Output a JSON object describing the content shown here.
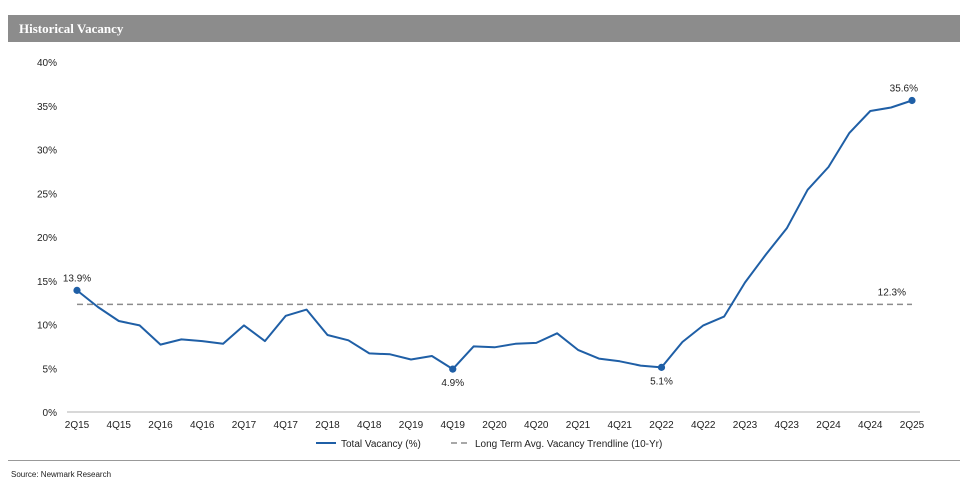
{
  "header": {
    "title": "Historical Vacancy"
  },
  "footer": {
    "source": "Source: Newmark Research"
  },
  "chart_data": {
    "type": "line",
    "title": "Historical Vacancy",
    "xlabel": "",
    "ylabel": "",
    "ylim": [
      0,
      40
    ],
    "yticks": [
      "0%",
      "5%",
      "10%",
      "15%",
      "20%",
      "25%",
      "30%",
      "35%",
      "40%"
    ],
    "grid": false,
    "legend_position": "bottom",
    "categories": [
      "2Q15",
      "3Q15",
      "4Q15",
      "1Q16",
      "2Q16",
      "3Q16",
      "4Q16",
      "1Q17",
      "2Q17",
      "3Q17",
      "4Q17",
      "1Q18",
      "2Q18",
      "3Q18",
      "4Q18",
      "1Q19",
      "2Q19",
      "3Q19",
      "4Q19",
      "1Q20",
      "2Q20",
      "3Q20",
      "4Q20",
      "1Q21",
      "2Q21",
      "3Q21",
      "4Q21",
      "1Q22",
      "2Q22",
      "3Q22",
      "4Q22",
      "1Q23",
      "2Q23",
      "3Q23",
      "4Q23",
      "1Q24",
      "2Q24",
      "3Q24",
      "4Q24",
      "1Q25",
      "2Q25"
    ],
    "xtick_labels": [
      "2Q15",
      "4Q15",
      "2Q16",
      "4Q16",
      "2Q17",
      "4Q17",
      "2Q18",
      "4Q18",
      "2Q19",
      "4Q19",
      "2Q20",
      "4Q20",
      "2Q21",
      "4Q21",
      "2Q22",
      "4Q22",
      "2Q23",
      "4Q23",
      "2Q24",
      "4Q24",
      "2Q25"
    ],
    "series": [
      {
        "name": "Total Vacancy (%)",
        "color": "#1f5fa6",
        "style": "solid",
        "values": [
          13.9,
          12.0,
          10.4,
          9.9,
          7.7,
          8.3,
          8.1,
          7.8,
          9.9,
          8.1,
          11.0,
          11.7,
          8.8,
          8.2,
          6.7,
          6.6,
          6.0,
          6.4,
          4.9,
          7.5,
          7.4,
          7.8,
          7.9,
          9.0,
          7.1,
          6.1,
          5.8,
          5.3,
          5.1,
          8.0,
          9.9,
          10.9,
          14.8,
          18.0,
          21.0,
          25.4,
          28.0,
          31.9,
          34.4,
          34.8,
          35.6
        ],
        "highlight_points": [
          {
            "category": "2Q15",
            "value": 13.9,
            "label": "13.9%"
          },
          {
            "category": "4Q19",
            "value": 4.9,
            "label": "4.9%"
          },
          {
            "category": "2Q22",
            "value": 5.1,
            "label": "5.1%"
          },
          {
            "category": "2Q25",
            "value": 35.6,
            "label": "35.6%"
          }
        ]
      },
      {
        "name": "Long Term Avg. Vacancy Trendline (10-Yr)",
        "color": "#8c8c8c",
        "style": "dashed",
        "constant": 12.3,
        "end_label": "12.3%"
      }
    ]
  }
}
